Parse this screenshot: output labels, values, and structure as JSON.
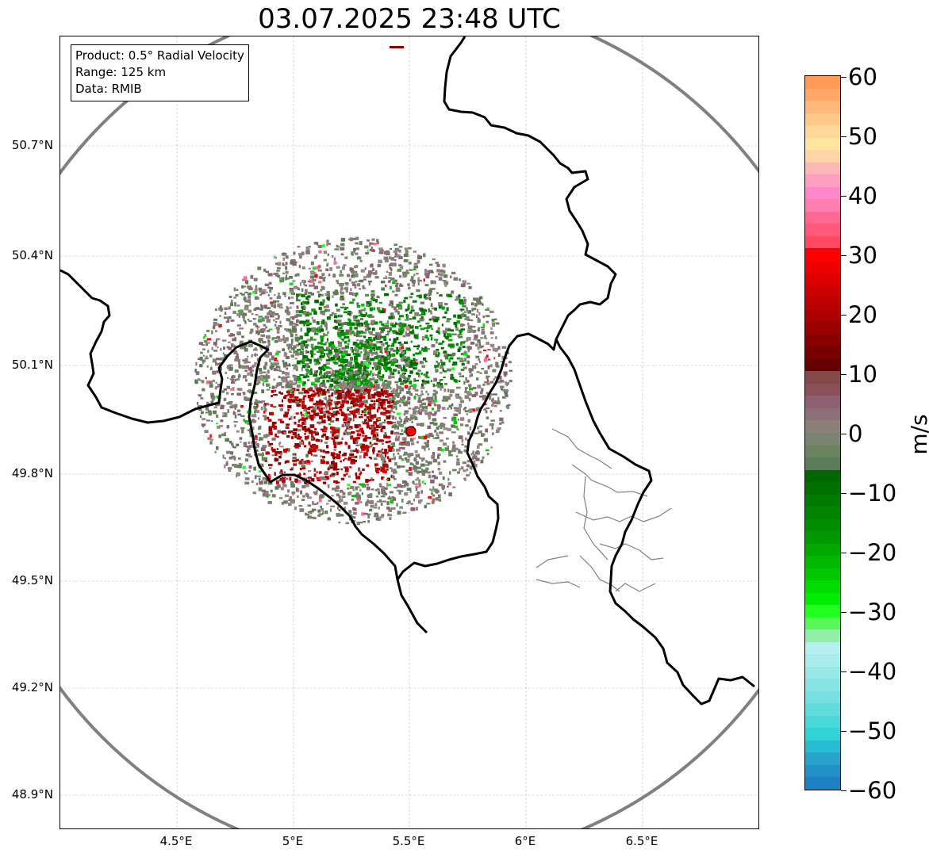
{
  "title": "03.07.2025 23:48 UTC",
  "info_box": {
    "product": "Product: 0.5° Radial Velocity",
    "range": "Range: 125 km",
    "data": "Data: RMIB"
  },
  "lat_labels": [
    "50.7°N",
    "50.4°N",
    "50.1°N",
    "49.8°N",
    "49.5°N",
    "49.2°N",
    "48.9°N"
  ],
  "lon_labels": [
    "4.5°E",
    "5°E",
    "5.5°E",
    "6°E",
    "6.5°E"
  ],
  "colorbar": {
    "unit": "m/s",
    "min": -60,
    "max": 60,
    "ticks": [
      "60",
      "50",
      "40",
      "30",
      "20",
      "10",
      "0",
      "−10",
      "−20",
      "−30",
      "−40",
      "−50",
      "−60"
    ],
    "colors_top_to_bottom": [
      "#ff9a58",
      "#ffa868",
      "#ffb878",
      "#ffc888",
      "#ffd898",
      "#ffe6a0",
      "#ffd4a8",
      "#ffb8b8",
      "#ffa0c0",
      "#ff88c8",
      "#ff80b0",
      "#ff6890",
      "#ff5878",
      "#ff4860",
      "#ff0000",
      "#ee0000",
      "#dd0000",
      "#cc0000",
      "#bb0000",
      "#aa0000",
      "#990000",
      "#880000",
      "#770000",
      "#660000",
      "#844848",
      "#8a5058",
      "#8c6070",
      "#8c7078",
      "#8a8078",
      "#7a8470",
      "#6a8460",
      "#5a7c58",
      "#006600",
      "#007000",
      "#007a00",
      "#008400",
      "#008e00",
      "#009800",
      "#00a800",
      "#00b800",
      "#00c800",
      "#00dc00",
      "#00ee00",
      "#20ff20",
      "#58f858",
      "#90f0a8",
      "#b8f0f0",
      "#a8ecec",
      "#98e8e8",
      "#88e4e4",
      "#78e0e0",
      "#60dcdc",
      "#48d8d8",
      "#30d4d4",
      "#28bcd0",
      "#28a4cc",
      "#2490c8",
      "#2080c4"
    ]
  },
  "radar_site": {
    "lat": 49.91,
    "lon": 5.51,
    "color": "#ff0000"
  },
  "map": {
    "lon_range": [
      4.0,
      7.0
    ],
    "lat_range": [
      48.8,
      51.0
    ],
    "range_ring_color": "#808080",
    "border_color": "#000000",
    "subregion_color": "#808080"
  }
}
